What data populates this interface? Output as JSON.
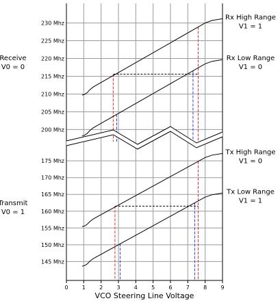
{
  "chart_data": {
    "type": "line",
    "xlabel": "VCO Steering Line Voltage",
    "x_ticks": [
      0,
      1,
      2,
      3,
      4,
      5,
      6,
      7,
      8,
      9
    ],
    "xlim": [
      0,
      9
    ],
    "colors": {
      "lines": "#000000",
      "grid": "#9a9a9a",
      "red_guides": "#e8282f",
      "blue_guides": "#2d3ee8"
    },
    "panels": [
      {
        "id": "receive",
        "label_lines": [
          "Receive",
          "V0 = 0"
        ],
        "y_ticks": [
          200,
          205,
          210,
          215,
          220,
          225,
          230
        ],
        "y_tick_labels": [
          "200 Mhz",
          "205 Mhz",
          "210 Mhz",
          "215 Mhz",
          "220 Mhz",
          "225 Mhz",
          "230 Mhz"
        ],
        "ylim": [
          197,
          233
        ],
        "series": [
          {
            "label_lines": [
              "Rx High Range",
              "V1 = 1"
            ],
            "x": [
              0.9,
              1.05,
              1.2,
              1.35,
              1.55,
              8.0,
              8.4,
              9.0
            ],
            "y": [
              209.7,
              209.9,
              210.4,
              211.2,
              212.0,
              230.0,
              230.7,
              231.2
            ]
          },
          {
            "label_lines": [
              "Rx Low Range",
              "V1 = 0"
            ],
            "x": [
              0.9,
              1.05,
              1.2,
              1.35,
              1.55,
              8.0,
              8.4,
              9.0
            ],
            "y": [
              198.2,
              198.4,
              198.9,
              199.7,
              200.5,
              218.5,
              219.2,
              219.7
            ]
          }
        ],
        "guides": [
          {
            "color": "red",
            "x": [
              2.7,
              7.6
            ]
          },
          {
            "color": "blue",
            "x": [
              2.9,
              7.3
            ]
          }
        ],
        "reference_level": 215.6
      },
      {
        "id": "transmit",
        "label_lines": [
          "Transmit",
          "V0 = 1"
        ],
        "y_ticks": [
          145,
          150,
          155,
          160,
          165,
          170,
          175
        ],
        "y_tick_labels": [
          "145 Mhz",
          "150 Mhz",
          "155 Mhz",
          "160 Mhz",
          "165 Mhz",
          "170 Mhz",
          "175 Mhz"
        ],
        "ylim": [
          141,
          178.5
        ],
        "series": [
          {
            "label_lines": [
              "Tx High Range",
              "V1 = 0"
            ],
            "x": [
              0.9,
              1.05,
              1.2,
              1.35,
              1.55,
              8.0,
              8.4,
              9.0
            ],
            "y": [
              155.4,
              155.6,
              156.1,
              156.9,
              157.7,
              176.0,
              176.7,
              177.2
            ]
          },
          {
            "label_lines": [
              "Tx Low Range",
              "V1 = 1"
            ],
            "x": [
              0.9,
              1.05,
              1.2,
              1.35,
              1.55,
              8.0,
              8.4,
              9.0
            ],
            "y": [
              143.6,
              143.8,
              144.3,
              145.1,
              145.9,
              164.2,
              164.9,
              165.4
            ]
          }
        ],
        "guides": [
          {
            "color": "red",
            "x": [
              2.8,
              7.6
            ]
          },
          {
            "color": "blue",
            "x": [
              3.1,
              7.4
            ]
          }
        ],
        "reference_level": 161.5
      }
    ]
  }
}
